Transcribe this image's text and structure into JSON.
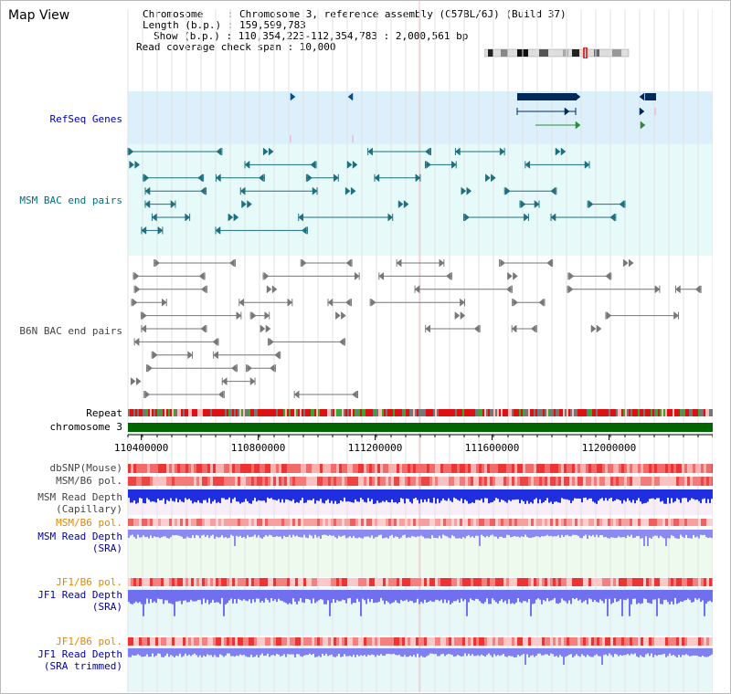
{
  "title": "Map View",
  "info": {
    "chromosome": "Chromosome    : Chromosome 3, reference assembly (C57BL/6J) (Build 37)",
    "length": "Length (b.p.) : 159,599,783",
    "show": "Show (b.p.) : 110,354,223-112,354,783 : 2,000,561 bp",
    "span": "Read coverage check span : 10,000"
  },
  "tracks": {
    "refseq": "RefSeq Genes",
    "msm_bac": "MSM BAC end pairs",
    "b6n_bac": "B6N BAC end pairs",
    "repeat": "Repeat",
    "chrom": "chromosome 3",
    "dbsnp": "dbSNP(Mouse)",
    "msm_pol": "MSM/B6 pol.",
    "msm_depth_cap": "MSM Read Depth\n(Capillary)",
    "msm_pol2": "MSM/B6 pol.",
    "msm_depth_sra": "MSM Read Depth\n(SRA)",
    "jf1_pol": "JF1/B6 pol.",
    "jf1_depth_sra": "JF1 Read Depth\n(SRA)",
    "jf1_pol2": "JF1/B6 pol.",
    "jf1_depth_trim": "JF1 Read Depth\n(SRA trimmed)"
  },
  "axis": {
    "ticks": [
      "110400000",
      "110800000",
      "111200000",
      "111600000",
      "112000000"
    ]
  },
  "colors": {
    "refseq_bg": "#dbf0fb",
    "msm_bg": "#e6fafa",
    "b6n_bg": "#ffffff",
    "chrom": "#006600",
    "gene": "#002a5c",
    "msm_pair": "#1e6f80",
    "b6n_pair": "#777777",
    "label_blue": "#0000aa",
    "label_teal": "#006d80",
    "label_orange": "#e08800",
    "pol_red": "#e00000",
    "depth_blue": "#1f2fe0",
    "depth_violet": "#6f6ff0"
  }
}
